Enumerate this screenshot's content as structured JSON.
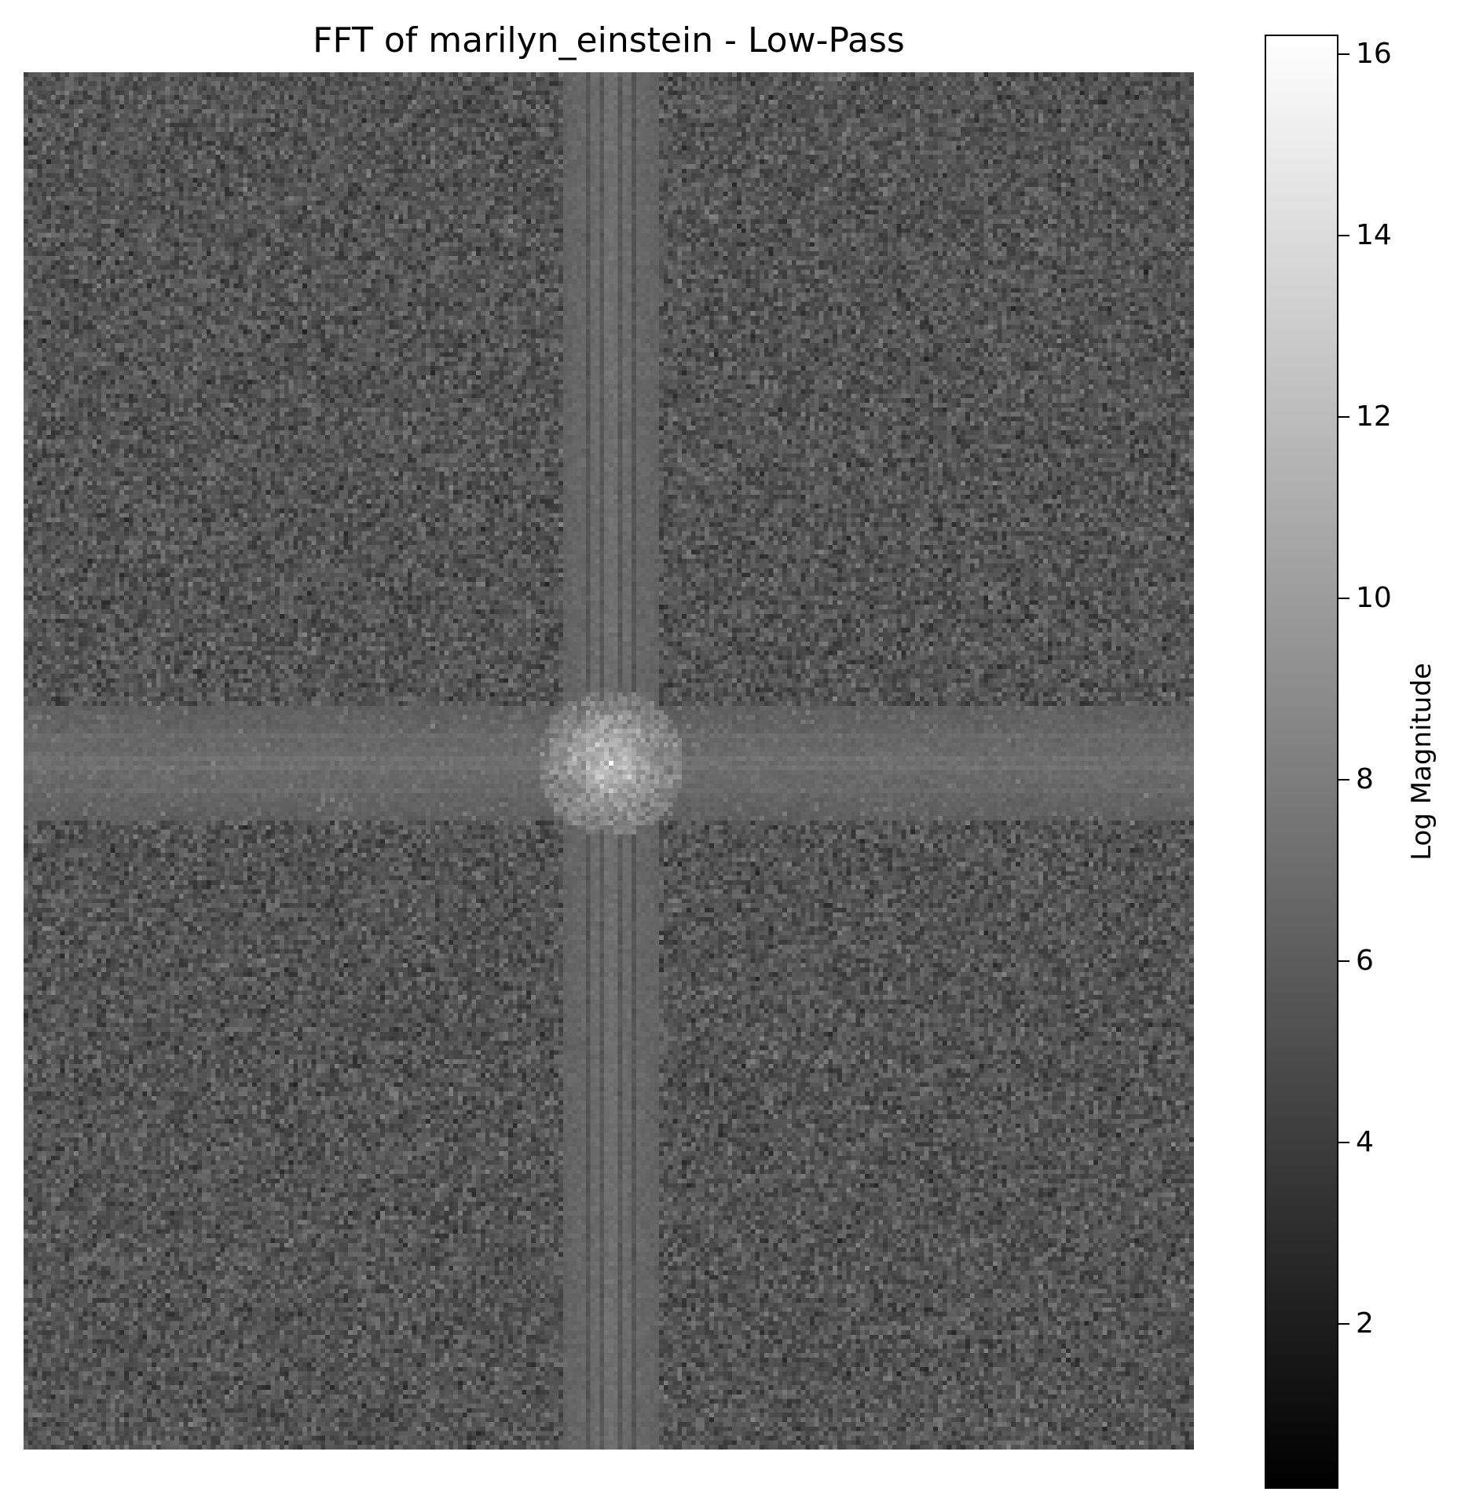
{
  "chart_data": {
    "type": "heatmap",
    "title": "FFT of marilyn_einstein - Low-Pass",
    "colormap": "gray",
    "colorbar": {
      "label": "Log Magnitude",
      "range": [
        0.2,
        16.2
      ],
      "ticks": [
        2,
        4,
        6,
        8,
        10,
        12,
        14,
        16
      ],
      "tick_labels": [
        "2",
        "4",
        "6",
        "8",
        "10",
        "12",
        "14",
        "16"
      ]
    },
    "image": {
      "width": 256,
      "height": 300,
      "center": [
        128,
        150
      ],
      "background_level": 5.5,
      "background_noise": 1.0,
      "horizontal_band_level": 7.0,
      "vertical_band_level": 7.2,
      "center_peak": 16.2
    },
    "axes_visible": false
  }
}
